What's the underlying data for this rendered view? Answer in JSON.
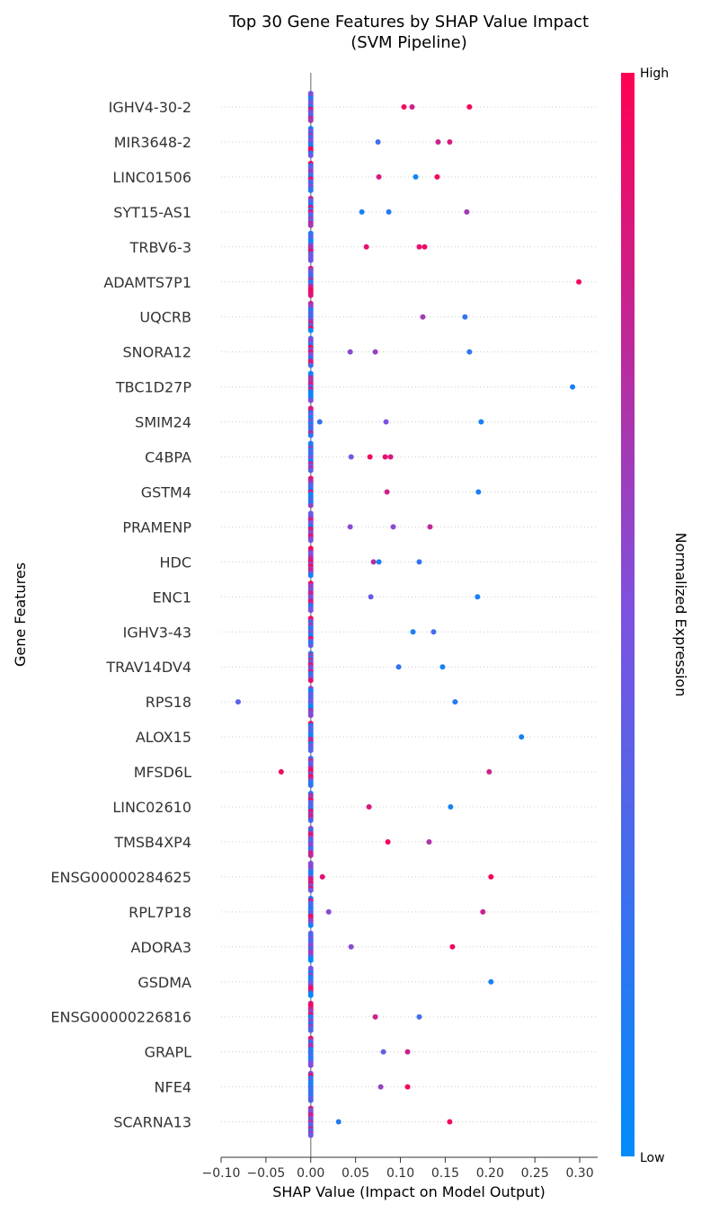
{
  "chart_data": {
    "type": "scatter",
    "subtype": "shap-beeswarm",
    "title_line1": "Top 30 Gene Features by SHAP Value Impact",
    "title_line2": "(SVM Pipeline)",
    "xlabel": "SHAP Value (Impact on Model Output)",
    "ylabel": "Gene Features",
    "xlim": [
      -0.1,
      0.32
    ],
    "x_ticks": [
      -0.1,
      -0.05,
      0.0,
      0.05,
      0.1,
      0.15,
      0.2,
      0.25,
      0.3
    ],
    "x_tick_labels": [
      "−0.10",
      "−0.05",
      "0.00",
      "0.05",
      "0.10",
      "0.15",
      "0.20",
      "0.25",
      "0.30"
    ],
    "grid": false,
    "colorbar": {
      "label": "Normalized Expression",
      "high_label": "High",
      "low_label": "Low",
      "low_color": "#008bfa",
      "mid_color": "#7c52e0",
      "high_color": "#ff0052"
    },
    "features": [
      {
        "name": "IGHV4-30-2",
        "points": [
          [
            0.104,
            0.95
          ],
          [
            0.113,
            0.8
          ],
          [
            0.177,
            0.98
          ]
        ]
      },
      {
        "name": "MIR3648-2",
        "points": [
          [
            0.075,
            0.25
          ],
          [
            0.142,
            0.8
          ],
          [
            0.155,
            0.85
          ]
        ]
      },
      {
        "name": "LINC01506",
        "points": [
          [
            0.076,
            0.85
          ],
          [
            0.117,
            0.05
          ],
          [
            0.141,
            0.95
          ]
        ]
      },
      {
        "name": "SYT15-AS1",
        "points": [
          [
            0.057,
            0.1
          ],
          [
            0.087,
            0.15
          ],
          [
            0.174,
            0.65
          ]
        ]
      },
      {
        "name": "TRBV6-3",
        "points": [
          [
            0.062,
            0.9
          ],
          [
            0.121,
            0.9
          ],
          [
            0.127,
            0.95
          ]
        ]
      },
      {
        "name": "ADAMTS7P1",
        "points": [
          [
            0.299,
            0.95
          ]
        ]
      },
      {
        "name": "UQCRB",
        "points": [
          [
            0.125,
            0.65
          ],
          [
            0.172,
            0.2
          ]
        ]
      },
      {
        "name": "SNORA12",
        "points": [
          [
            0.044,
            0.55
          ],
          [
            0.072,
            0.6
          ],
          [
            0.177,
            0.2
          ]
        ]
      },
      {
        "name": "TBC1D27P",
        "points": [
          [
            0.292,
            0.1
          ]
        ]
      },
      {
        "name": "SMIM24",
        "points": [
          [
            0.01,
            0.2
          ],
          [
            0.084,
            0.5
          ],
          [
            0.19,
            0.1
          ]
        ]
      },
      {
        "name": "C4BPA",
        "points": [
          [
            0.045,
            0.45
          ],
          [
            0.066,
            0.95
          ],
          [
            0.083,
            0.9
          ],
          [
            0.089,
            0.85
          ]
        ]
      },
      {
        "name": "GSTM4",
        "points": [
          [
            0.085,
            0.8
          ],
          [
            0.187,
            0.1
          ]
        ]
      },
      {
        "name": "PRAMENP",
        "points": [
          [
            0.044,
            0.55
          ],
          [
            0.092,
            0.55
          ],
          [
            0.133,
            0.75
          ]
        ]
      },
      {
        "name": "HDC",
        "points": [
          [
            0.07,
            0.7
          ],
          [
            0.076,
            0.1
          ],
          [
            0.121,
            0.2
          ]
        ]
      },
      {
        "name": "ENC1",
        "points": [
          [
            0.067,
            0.4
          ],
          [
            0.186,
            0.1
          ]
        ]
      },
      {
        "name": "IGHV3-43",
        "points": [
          [
            0.114,
            0.1
          ],
          [
            0.137,
            0.25
          ]
        ]
      },
      {
        "name": "TRAV14DV4",
        "points": [
          [
            0.098,
            0.2
          ],
          [
            0.147,
            0.1
          ]
        ]
      },
      {
        "name": "RPS18",
        "points": [
          [
            -0.081,
            0.35
          ],
          [
            0.161,
            0.15
          ]
        ]
      },
      {
        "name": "ALOX15",
        "points": [
          [
            0.235,
            0.1
          ]
        ]
      },
      {
        "name": "MFSD6L",
        "points": [
          [
            -0.033,
            0.95
          ],
          [
            0.199,
            0.8
          ]
        ]
      },
      {
        "name": "LINC02610",
        "points": [
          [
            0.065,
            0.85
          ],
          [
            0.156,
            0.1
          ]
        ]
      },
      {
        "name": "TMSB4XP4",
        "points": [
          [
            0.086,
            0.95
          ],
          [
            0.132,
            0.7
          ]
        ]
      },
      {
        "name": "ENSG00000284625",
        "points": [
          [
            0.013,
            0.9
          ],
          [
            0.201,
            1.0
          ]
        ]
      },
      {
        "name": "RPL7P18",
        "points": [
          [
            0.02,
            0.55
          ],
          [
            0.192,
            0.8
          ]
        ]
      },
      {
        "name": "ADORA3",
        "points": [
          [
            0.045,
            0.55
          ],
          [
            0.158,
            0.95
          ]
        ]
      },
      {
        "name": "GSDMA",
        "points": [
          [
            0.201,
            0.1
          ]
        ]
      },
      {
        "name": "ENSG00000226816",
        "points": [
          [
            0.072,
            0.8
          ],
          [
            0.121,
            0.25
          ]
        ]
      },
      {
        "name": "GRAPL",
        "points": [
          [
            0.081,
            0.4
          ],
          [
            0.108,
            0.8
          ]
        ]
      },
      {
        "name": "NFE4",
        "points": [
          [
            0.078,
            0.6
          ],
          [
            0.108,
            0.95
          ]
        ]
      },
      {
        "name": "SCARNA13",
        "points": [
          [
            0.031,
            0.15
          ],
          [
            0.155,
            0.95
          ]
        ]
      }
    ]
  }
}
